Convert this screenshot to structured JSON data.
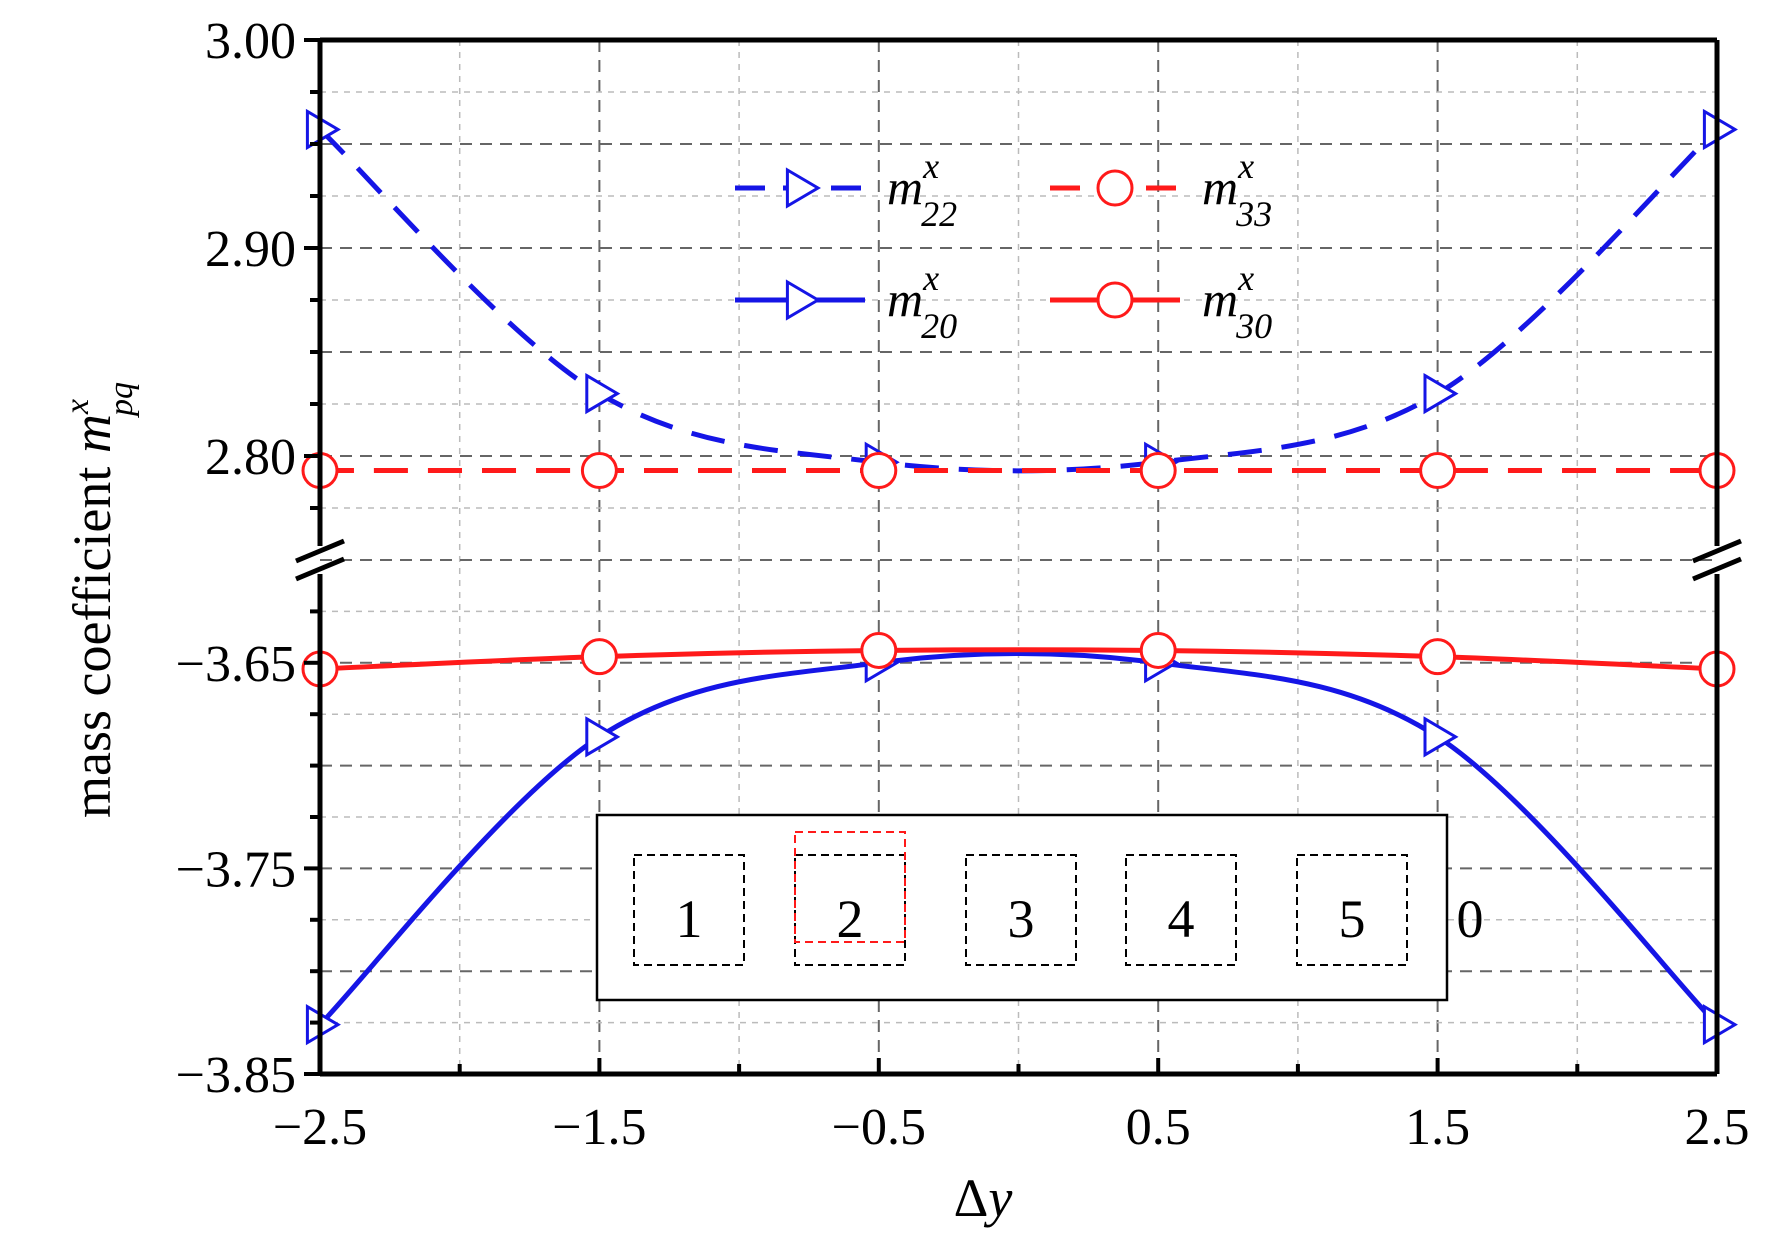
{
  "chart_data": {
    "type": "line",
    "xlabel_symbol": "Δ",
    "xlabel_var": "y",
    "ylabel_text": "mass coefficient ",
    "ylabel_var": "m",
    "ylabel_sup": "x",
    "ylabel_sub": "pq",
    "x_ticks": [
      "−2.5",
      "−1.5",
      "−0.5",
      "0.5",
      "1.5",
      "2.5"
    ],
    "x_tick_values": [
      -2.5,
      -1.5,
      -0.5,
      0.5,
      1.5,
      2.5
    ],
    "xlim": [
      -2.5,
      2.5
    ],
    "y_axis_broken": true,
    "upper_segment": {
      "ylim": [
        2.75,
        3.0
      ],
      "ticks": [
        "2.80",
        "2.90",
        "3.00"
      ],
      "tick_values": [
        2.8,
        2.9,
        3.0
      ]
    },
    "lower_segment": {
      "ylim": [
        -3.85,
        -3.6
      ],
      "ticks": [
        "−3.85",
        "−3.75",
        "−3.65"
      ],
      "tick_values": [
        -3.85,
        -3.75,
        -3.65
      ]
    },
    "grid": true,
    "legend_position": "top-center",
    "x": [
      -2.5,
      -1.5,
      -0.5,
      0.5,
      1.5,
      2.5
    ],
    "series": [
      {
        "name_var": "m",
        "name_sup": "x",
        "name_sub": "22",
        "segment": "upper",
        "style": "dashed",
        "marker": "triangle-right",
        "color": "#1515e6",
        "values": [
          2.957,
          2.83,
          2.797,
          2.797,
          2.83,
          2.957
        ]
      },
      {
        "name_var": "m",
        "name_sup": "x",
        "name_sub": "33",
        "segment": "upper",
        "style": "dashed",
        "marker": "circle",
        "color": "#ff1a1a",
        "values": [
          2.793,
          2.793,
          2.793,
          2.793,
          2.793,
          2.793
        ]
      },
      {
        "name_var": "m",
        "name_sup": "x",
        "name_sub": "20",
        "segment": "lower",
        "style": "solid",
        "marker": "triangle-right",
        "color": "#1515e6",
        "values": [
          -3.826,
          -3.686,
          -3.65,
          -3.65,
          -3.686,
          -3.826
        ]
      },
      {
        "name_var": "m",
        "name_sup": "x",
        "name_sub": "30",
        "segment": "lower",
        "style": "solid",
        "marker": "circle",
        "color": "#ff1a1a",
        "values": [
          -3.653,
          -3.647,
          -3.644,
          -3.644,
          -3.647,
          -3.653
        ]
      }
    ],
    "inset": {
      "box_labels": [
        "1",
        "2",
        "3",
        "4",
        "5"
      ],
      "trailing_label": "0"
    }
  }
}
